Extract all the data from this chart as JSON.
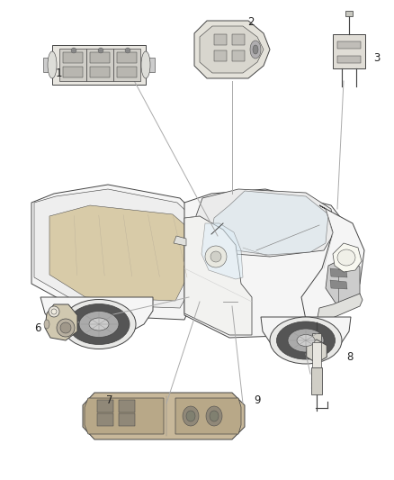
{
  "bg_color": "#ffffff",
  "fig_width": 4.38,
  "fig_height": 5.33,
  "dpi": 100,
  "line_color": "#444444",
  "line_width": 0.7,
  "truck_fill": "#f5f5f5",
  "truck_edge": "#444444",
  "bed_fill": "#e8e0c8",
  "part_fill": "#e8e8e4",
  "part_edge": "#444444",
  "leader_color": "#888888",
  "label_fontsize": 8.5,
  "label_color": "#222222"
}
